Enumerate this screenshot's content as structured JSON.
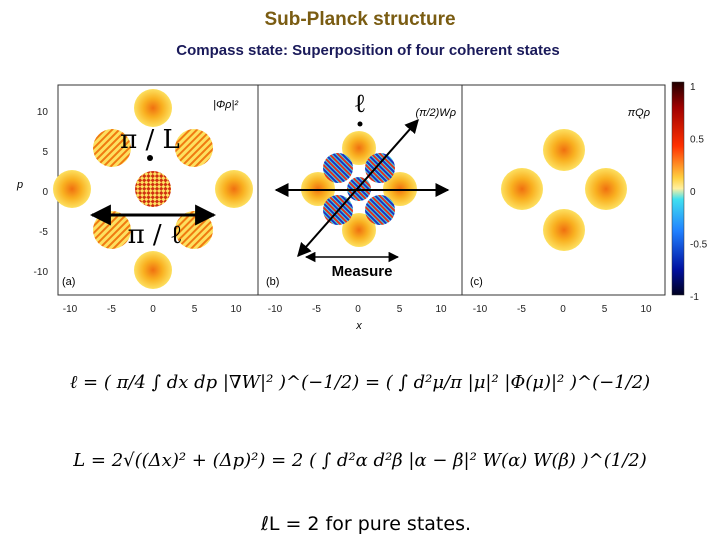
{
  "header": {
    "title": "Sub-Planck structure",
    "subtitle": "Compass state: Superposition of four coherent states"
  },
  "figure": {
    "x_axis_label": "x",
    "y_axis_label": "p",
    "y_ticks": [
      "10",
      "5",
      "0",
      "-5",
      "-10"
    ],
    "panels": [
      {
        "label": "(a)",
        "quantity": "|Φρ|²",
        "x_ticks": [
          "-10",
          "-5",
          "0",
          "5",
          "10"
        ]
      },
      {
        "label": "(b)",
        "quantity": "(π/2)Wρ",
        "x_ticks": [
          "-10",
          "-5",
          "0",
          "5",
          "10"
        ]
      },
      {
        "label": "(c)",
        "quantity": "πQρ",
        "x_ticks": [
          "-10",
          "-5",
          "0",
          "5",
          "10"
        ]
      }
    ],
    "colorbar_ticks": [
      "1",
      "0.5",
      "0",
      "-0.5",
      "-1"
    ],
    "annotations": [
      "π / L",
      "π / ℓ",
      "ℓ",
      "Measure"
    ]
  },
  "equations": [
    "ℓ = ( π/4 ∫ dx dp |∇W|² )^(−1/2) = ( ∫ d²μ/π |μ|² |Φ(μ)|² )^(−1/2)",
    "L = 2√((Δx)² + (Δp)²) = 2 ( ∫ d²α d²β |α − β|² W(α) W(β) )^(1/2)",
    "ℓL = 2 for pure states."
  ]
}
